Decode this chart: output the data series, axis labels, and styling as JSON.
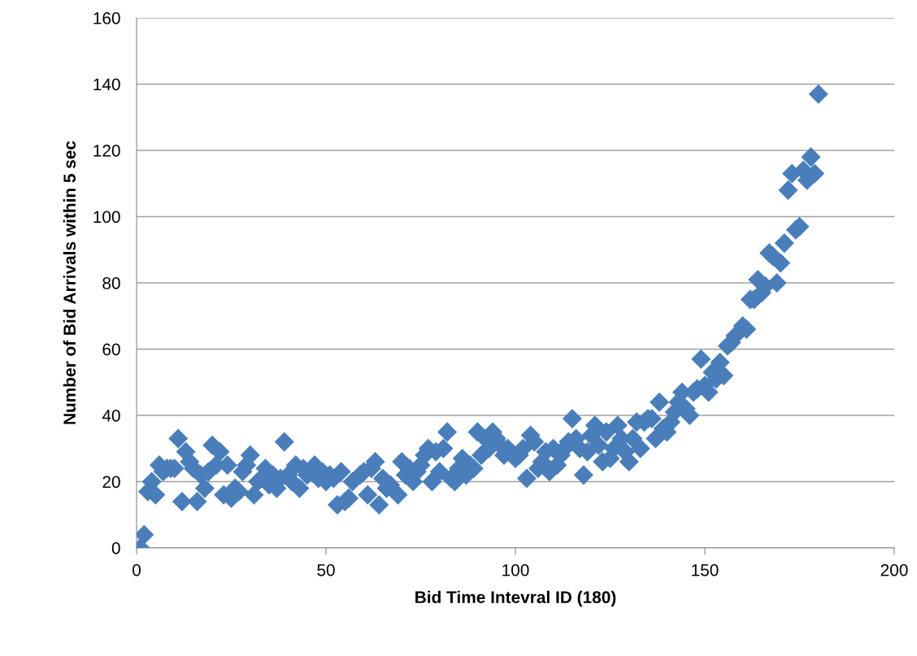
{
  "chart_data": {
    "type": "scatter",
    "xlabel": "Bid Time Intevral ID (180)",
    "ylabel": "Number of Bid Arrivals within 5 sec",
    "xlim": [
      0,
      200
    ],
    "xticks": [
      0,
      50,
      100,
      150,
      200
    ],
    "ylim": [
      0,
      160
    ],
    "yticks": [
      0,
      20,
      40,
      60,
      80,
      100,
      120,
      140,
      160
    ],
    "grid": "y",
    "marker": "diamond",
    "legend": false,
    "series": [
      {
        "color": "#4a7ebb",
        "x": [
          1,
          2,
          3,
          4,
          5,
          6,
          7,
          8,
          9,
          10,
          11,
          12,
          13,
          14,
          15,
          16,
          17,
          18,
          19,
          20,
          21,
          22,
          23,
          24,
          25,
          26,
          27,
          28,
          29,
          30,
          31,
          32,
          33,
          34,
          35,
          36,
          37,
          38,
          39,
          40,
          41,
          42,
          43,
          44,
          45,
          46,
          47,
          48,
          49,
          50,
          51,
          52,
          53,
          54,
          55,
          56,
          57,
          58,
          59,
          60,
          61,
          62,
          63,
          64,
          65,
          66,
          67,
          68,
          69,
          70,
          71,
          72,
          73,
          74,
          75,
          76,
          77,
          78,
          79,
          80,
          81,
          82,
          83,
          84,
          85,
          86,
          87,
          88,
          89,
          90,
          91,
          92,
          93,
          94,
          95,
          96,
          97,
          98,
          99,
          100,
          101,
          102,
          103,
          104,
          105,
          106,
          107,
          108,
          109,
          110,
          111,
          112,
          113,
          114,
          115,
          116,
          117,
          118,
          119,
          120,
          121,
          122,
          123,
          124,
          125,
          126,
          127,
          128,
          129,
          130,
          131,
          132,
          133,
          134,
          135,
          136,
          137,
          138,
          139,
          140,
          141,
          142,
          143,
          144,
          145,
          146,
          147,
          148,
          149,
          150,
          151,
          152,
          153,
          154,
          155,
          156,
          157,
          158,
          159,
          160,
          161,
          162,
          163,
          164,
          165,
          166,
          167,
          168,
          169,
          170,
          171,
          172,
          173,
          174,
          175,
          176,
          177,
          178,
          179,
          180
        ],
        "values": [
          0,
          4,
          17,
          20,
          16,
          25,
          23,
          24,
          24,
          24,
          33,
          14,
          29,
          26,
          24,
          14,
          22,
          18,
          23,
          31,
          25,
          29,
          16,
          25,
          15,
          18,
          17,
          23,
          25,
          28,
          16,
          20,
          21,
          24,
          19,
          22,
          18,
          21,
          32,
          22,
          20,
          25,
          18,
          24,
          22,
          null,
          25,
          21,
          23,
          20,
          22,
          21,
          13,
          23,
          14,
          15,
          20,
          null,
          22,
          23,
          16,
          24,
          26,
          13,
          21,
          18,
          19,
          null,
          16,
          26,
          22,
          24,
          20,
          23,
          25,
          28,
          30,
          20,
          29,
          23,
          30,
          35,
          21,
          20,
          24,
          27,
          22,
          25,
          24,
          35,
          28,
          33,
          30,
          35,
          33,
          31,
          28,
          30,
          null,
          27,
          28,
          30,
          21,
          34,
          32,
          24,
          26,
          29,
          23,
          30,
          25,
          28,
          30,
          32,
          39,
          33,
          30,
          22,
          29,
          34,
          37,
          31,
          26,
          35,
          27,
          30,
          37,
          33,
          29,
          26,
          33,
          38,
          30,
          38,
          39,
          39,
          33,
          44,
          36,
          35,
          38,
          41,
          44,
          47,
          42,
          40,
          47,
          48,
          57,
          49,
          47,
          53,
          51,
          56,
          52,
          61,
          62,
          64,
          null,
          67,
          66,
          75,
          75,
          81,
          77,
          79,
          89,
          88,
          80,
          86,
          92,
          108,
          113,
          96,
          97,
          114,
          111,
          118,
          113,
          137
        ]
      }
    ]
  }
}
